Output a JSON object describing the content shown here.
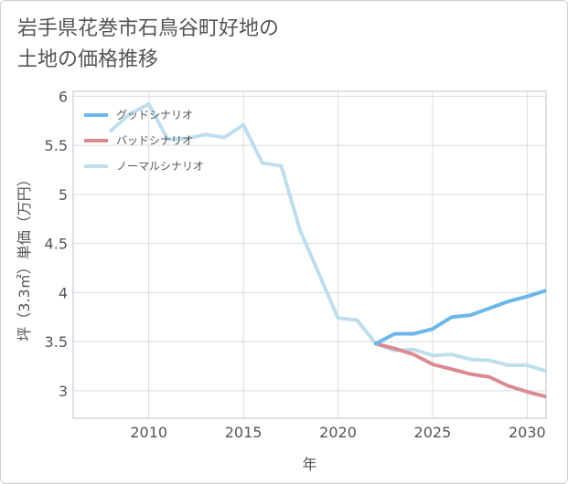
{
  "title_lines": [
    "岩手県花巻市石鳥谷町好地の",
    "土地の価格推移"
  ],
  "chart_data": {
    "type": "line",
    "xlabel": "年",
    "ylabel": "坪（3.3㎡）単価（万円）",
    "xlim": [
      2006,
      2031
    ],
    "ylim": [
      2.72,
      6.05
    ],
    "xticks": [
      2010,
      2015,
      2020,
      2025,
      2030
    ],
    "yticks": [
      3,
      3.5,
      4,
      4.5,
      5,
      5.5,
      6
    ],
    "ytick_labels": [
      "3",
      "3.5",
      "4",
      "4.5",
      "5",
      "5.5",
      "6"
    ],
    "grid": true,
    "legend_position": "top-left",
    "series": [
      {
        "name": "グッドシナリオ",
        "color": "#6cb6ea",
        "x": [
          2022,
          2023,
          2024,
          2025,
          2026,
          2027,
          2028,
          2029,
          2030,
          2031
        ],
        "y": [
          3.48,
          3.58,
          3.58,
          3.63,
          3.75,
          3.77,
          3.84,
          3.91,
          3.96,
          4.02
        ]
      },
      {
        "name": "バッドシナリオ",
        "color": "#dc8a92",
        "x": [
          2022,
          2023,
          2024,
          2025,
          2026,
          2027,
          2028,
          2029,
          2030,
          2031
        ],
        "y": [
          3.48,
          3.43,
          3.37,
          3.27,
          3.22,
          3.17,
          3.14,
          3.05,
          2.99,
          2.94
        ]
      },
      {
        "name": "ノーマルシナリオ",
        "color": "#bfdeed",
        "x": [
          2008,
          2009,
          2010,
          2011,
          2012,
          2013,
          2014,
          2015,
          2016,
          2017,
          2018,
          2019,
          2020,
          2021,
          2022,
          2023,
          2024,
          2025,
          2026,
          2027,
          2028,
          2029,
          2030,
          2031
        ],
        "y": [
          5.65,
          5.82,
          5.92,
          5.56,
          5.57,
          5.61,
          5.58,
          5.71,
          5.32,
          5.29,
          4.63,
          4.19,
          3.74,
          3.72,
          3.48,
          3.41,
          3.42,
          3.36,
          3.37,
          3.32,
          3.31,
          3.26,
          3.26,
          3.2
        ]
      }
    ]
  }
}
